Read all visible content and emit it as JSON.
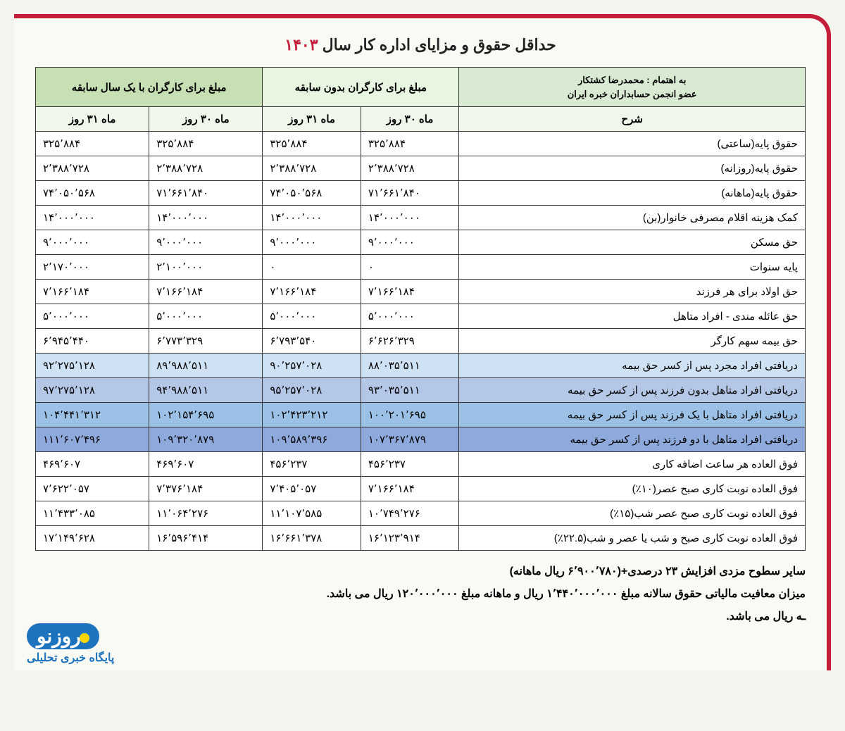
{
  "title_main": "حداقل حقوق و مزایای اداره کار سال ",
  "title_year": "۱۴۰۳",
  "header": {
    "attribution_line1": "به اهتمام : محمدرضا کشتکار",
    "attribution_line2": "عضو انجمن حسابداران خبره ایران",
    "col_desc": "شرح",
    "group_no_exp": "مبلغ برای کارگران بدون سابقه",
    "group_one_year": "مبلغ برای کارگران با یک سال سابقه",
    "month30": "ماه ۳۰ روز",
    "month31": "ماه ۳۱ روز"
  },
  "rows": [
    {
      "label": "حقوق پایه(ساعتی)",
      "n30": "۳۲۵٬۸۸۴",
      "n31": "۳۲۵٬۸۸۴",
      "e30": "۳۲۵٬۸۸۴",
      "e31": "۳۲۵٬۸۸۴",
      "hl": ""
    },
    {
      "label": "حقوق پایه(روزانه)",
      "n30": "۲٬۳۸۸٬۷۲۸",
      "n31": "۲٬۳۸۸٬۷۲۸",
      "e30": "۲٬۳۸۸٬۷۲۸",
      "e31": "۲٬۳۸۸٬۷۲۸",
      "hl": ""
    },
    {
      "label": "حقوق پایه(ماهانه)",
      "n30": "۷۱٬۶۶۱٬۸۴۰",
      "n31": "۷۴٬۰۵۰٬۵۶۸",
      "e30": "۷۱٬۶۶۱٬۸۴۰",
      "e31": "۷۴٬۰۵۰٬۵۶۸",
      "hl": ""
    },
    {
      "label": "کمک هزینه اقلام مصرفی خانوار(بن)",
      "n30": "۱۴٬۰۰۰٬۰۰۰",
      "n31": "۱۴٬۰۰۰٬۰۰۰",
      "e30": "۱۴٬۰۰۰٬۰۰۰",
      "e31": "۱۴٬۰۰۰٬۰۰۰",
      "hl": ""
    },
    {
      "label": "حق مسکن",
      "n30": "۹٬۰۰۰٬۰۰۰",
      "n31": "۹٬۰۰۰٬۰۰۰",
      "e30": "۹٬۰۰۰٬۰۰۰",
      "e31": "۹٬۰۰۰٬۰۰۰",
      "hl": ""
    },
    {
      "label": "پایه سنوات",
      "n30": "۰",
      "n31": "۰",
      "e30": "۲٬۱۰۰٬۰۰۰",
      "e31": "۲٬۱۷۰٬۰۰۰",
      "hl": ""
    },
    {
      "label": "حق اولاد برای هر فرزند",
      "n30": "۷٬۱۶۶٬۱۸۴",
      "n31": "۷٬۱۶۶٬۱۸۴",
      "e30": "۷٬۱۶۶٬۱۸۴",
      "e31": "۷٬۱۶۶٬۱۸۴",
      "hl": ""
    },
    {
      "label": "حق عائله مندی - افراد متاهل",
      "n30": "۵٬۰۰۰٬۰۰۰",
      "n31": "۵٬۰۰۰٬۰۰۰",
      "e30": "۵٬۰۰۰٬۰۰۰",
      "e31": "۵٬۰۰۰٬۰۰۰",
      "hl": ""
    },
    {
      "label": "حق بیمه سهم کارگر",
      "n30": "۶٬۶۲۶٬۳۲۹",
      "n31": "۶٬۷۹۳٬۵۴۰",
      "e30": "۶٬۷۷۳٬۳۲۹",
      "e31": "۶٬۹۴۵٬۴۴۰",
      "hl": ""
    },
    {
      "label": "دریافتی افراد مجرد پس از کسر حق بیمه",
      "n30": "۸۸٬۰۳۵٬۵۱۱",
      "n31": "۹۰٬۲۵۷٬۰۲۸",
      "e30": "۸۹٬۹۸۸٬۵۱۱",
      "e31": "۹۲٬۲۷۵٬۱۲۸",
      "hl": "row-blue1"
    },
    {
      "label": "دریافتی افراد متاهل بدون فرزند پس از کسر حق بیمه",
      "n30": "۹۳٬۰۳۵٬۵۱۱",
      "n31": "۹۵٬۲۵۷٬۰۲۸",
      "e30": "۹۴٬۹۸۸٬۵۱۱",
      "e31": "۹۷٬۲۷۵٬۱۲۸",
      "hl": "row-blue2"
    },
    {
      "label": "دریافتی افراد متاهل با یک فرزند پس از کسر حق بیمه",
      "n30": "۱۰۰٬۲۰۱٬۶۹۵",
      "n31": "۱۰۲٬۴۲۳٬۲۱۲",
      "e30": "۱۰۲٬۱۵۴٬۶۹۵",
      "e31": "۱۰۴٬۴۴۱٬۳۱۲",
      "hl": "row-blue3"
    },
    {
      "label": "دریافتی افراد متاهل با دو فرزند پس از کسر حق بیمه",
      "n30": "۱۰۷٬۳۶۷٬۸۷۹",
      "n31": "۱۰۹٬۵۸۹٬۳۹۶",
      "e30": "۱۰۹٬۳۲۰٬۸۷۹",
      "e31": "۱۱۱٬۶۰۷٬۴۹۶",
      "hl": "row-blue4"
    },
    {
      "label": "فوق العاده هر ساعت اضافه کاری",
      "n30": "۴۵۶٬۲۳۷",
      "n31": "۴۵۶٬۲۳۷",
      "e30": "۴۶۹٬۶۰۷",
      "e31": "۴۶۹٬۶۰۷",
      "hl": ""
    },
    {
      "label": "فوق العاده نوبت کاری صبح عصر(۱۰٪)",
      "n30": "۷٬۱۶۶٬۱۸۴",
      "n31": "۷٬۴۰۵٬۰۵۷",
      "e30": "۷٬۳۷۶٬۱۸۴",
      "e31": "۷٬۶۲۲٬۰۵۷",
      "hl": ""
    },
    {
      "label": "فوق العاده نوبت کاری صبح عصر شب(۱۵٪)",
      "n30": "۱۰٬۷۴۹٬۲۷۶",
      "n31": "۱۱٬۱۰۷٬۵۸۵",
      "e30": "۱۱٬۰۶۴٬۲۷۶",
      "e31": "۱۱٬۴۳۳٬۰۸۵",
      "hl": ""
    },
    {
      "label": "فوق العاده نوبت کاری صبح و شب یا عصر و شب(۲۲.۵٪)",
      "n30": "۱۶٬۱۲۳٬۹۱۴",
      "n31": "۱۶٬۶۶۱٬۳۷۸",
      "e30": "۱۶٬۵۹۶٬۴۱۴",
      "e31": "۱۷٬۱۴۹٬۶۲۸",
      "hl": ""
    }
  ],
  "notes": {
    "n1": "سایر سطوح مزدی افزایش ۲۳ درصدی+(۶٬۹۰۰٬۷۸۰ ریال ماهانه)",
    "n2": "میزان معافیت مالیاتی حقوق سالانه مبلغ ۱٬۴۴۰٬۰۰۰٬۰۰۰ ریال و ماهانه مبلغ ۱۲۰٬۰۰۰٬۰۰۰ ریال می باشد.",
    "n3": "ـه ریال می باشد."
  },
  "logo": {
    "brand": "روزنو",
    "sub": "پایگاه خبری تحلیلی"
  },
  "style": {
    "border_color": "#c41e3a",
    "hdr_right_bg": "#d9ead3",
    "hdr_mid_bg": "#e8f5e0",
    "hdr_left_bg": "#c6e0b4",
    "blue1": "#cfe2f3",
    "blue2": "#b4c7e7",
    "blue3": "#9bc2e6",
    "blue4": "#8ea9db"
  }
}
